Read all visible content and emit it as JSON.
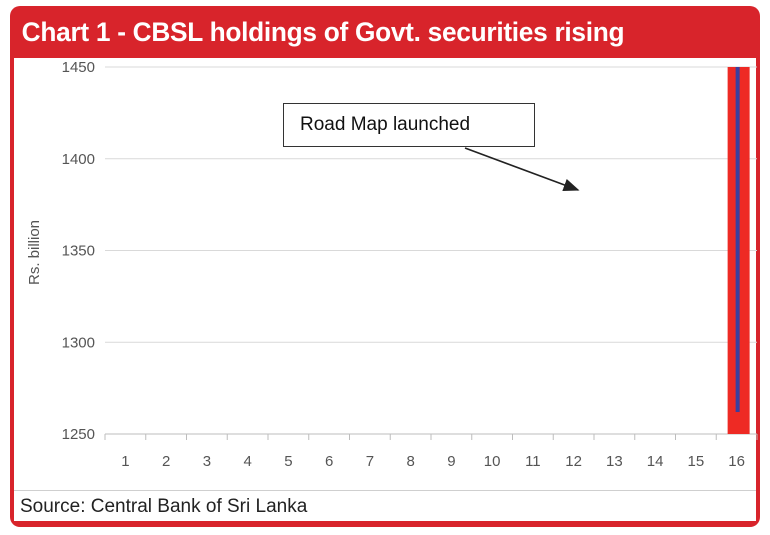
{
  "header": {
    "title": "Chart 1 - CBSL holdings of Govt. securities rising"
  },
  "source": {
    "text": "Source: Central Bank of Sri Lanka"
  },
  "colors": {
    "frame": "#d8242b",
    "bar": "#ee2a24",
    "line": "#3a3f9e"
  },
  "chart_data": {
    "type": "bar",
    "title": "Chart 1 - CBSL holdings of Govt. securities rising",
    "ylabel": "Rs. billion",
    "xlabel": "",
    "categories": [
      "1",
      "2",
      "3",
      "4",
      "5",
      "6",
      "7",
      "8",
      "9",
      "10",
      "11",
      "12",
      "13",
      "14",
      "15",
      "16"
    ],
    "values": [
      null,
      null,
      null,
      null,
      null,
      null,
      null,
      null,
      null,
      null,
      null,
      null,
      null,
      null,
      null,
      1450
    ],
    "line_values": [
      null,
      null,
      null,
      null,
      null,
      null,
      null,
      null,
      null,
      null,
      null,
      null,
      null,
      null,
      null,
      [
        1262,
        1450
      ]
    ],
    "ylim": [
      1250,
      1450
    ],
    "yticks": [
      1250,
      1300,
      1350,
      1400,
      1450
    ],
    "grid": true,
    "annotation": {
      "text": "Road Map launched"
    }
  }
}
